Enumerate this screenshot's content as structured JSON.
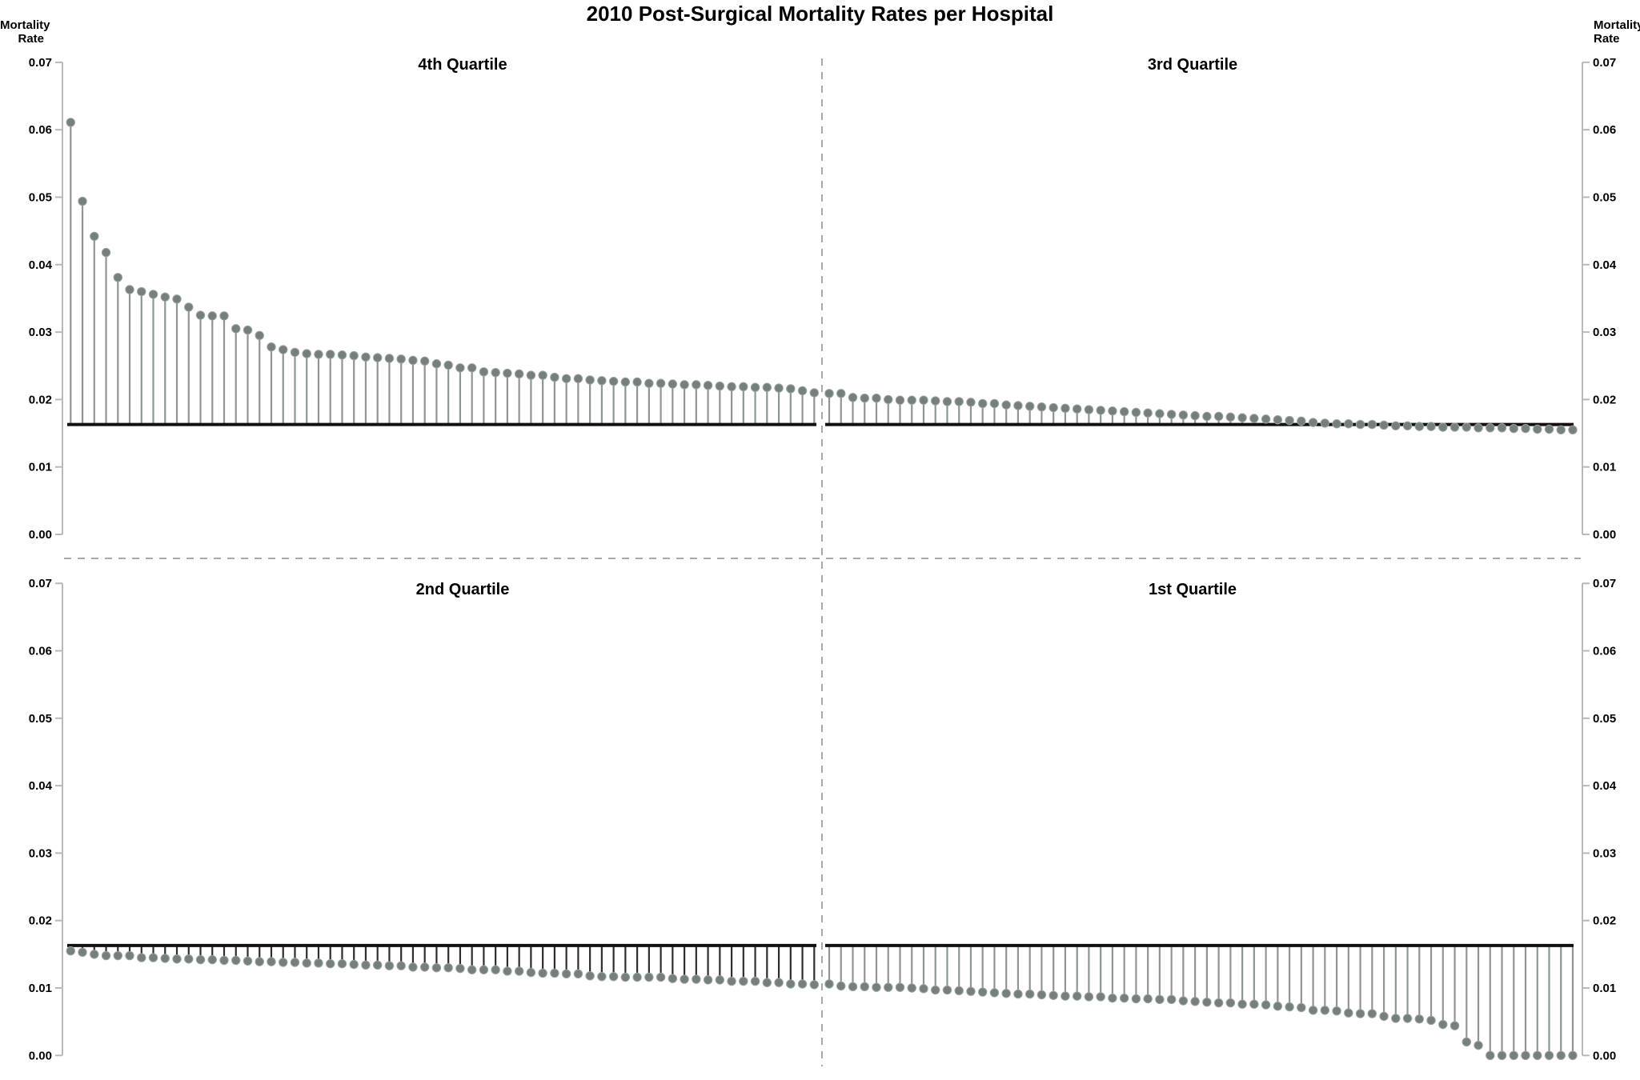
{
  "title": "2010 Post-Surgical Mortality Rates per Hospital",
  "chart_data": {
    "type": "stem",
    "title": "2010 Post-Surgical Mortality Rates per Hospital",
    "ylabel": "Mortality Rate",
    "ylabel_lines": [
      "Mortality",
      "Rate"
    ],
    "ylim": [
      0.0,
      0.07
    ],
    "y_ticks": [
      0.07,
      0.06,
      0.05,
      0.04,
      0.03,
      0.02,
      0.01,
      0.0
    ],
    "y_tick_labels": [
      "0.07",
      "0.06",
      "0.05",
      "0.04",
      "0.03",
      "0.02",
      "0.01",
      "0.00"
    ],
    "baseline_value": 0.0163,
    "grid": false,
    "legend": "none",
    "layout": "2x2 quadrants split by dashed dividers; each quadrant is a stem (needle) plot of per-hospital mortality rate versus the overall mean line at 0.0163; hospitals sorted descending",
    "colors": {
      "dot": "#75807d",
      "dot_edge": "#9aa3a0",
      "stem": "#8e9693",
      "stem_2nd_quartile": "#2d2d2d",
      "baseline": "#111111",
      "axis": "#b9b9b9",
      "dashed_divider": "#a9a9a9",
      "text": "#000000"
    },
    "panels": [
      {
        "label": "4th Quartile",
        "position": "top-left",
        "values": [
          0.0611,
          0.0494,
          0.0442,
          0.0418,
          0.0381,
          0.0363,
          0.036,
          0.0356,
          0.0352,
          0.0349,
          0.0337,
          0.0325,
          0.0324,
          0.0324,
          0.0305,
          0.0303,
          0.0295,
          0.0278,
          0.0274,
          0.027,
          0.0268,
          0.0267,
          0.0267,
          0.0266,
          0.0265,
          0.0263,
          0.0262,
          0.0261,
          0.026,
          0.0258,
          0.0257,
          0.0253,
          0.0251,
          0.0247,
          0.0247,
          0.0241,
          0.024,
          0.0239,
          0.0238,
          0.0236,
          0.0236,
          0.0233,
          0.0231,
          0.0231,
          0.0229,
          0.0228,
          0.0227,
          0.0226,
          0.0226,
          0.0224,
          0.0224,
          0.0223,
          0.0222,
          0.0222,
          0.0221,
          0.022,
          0.0219,
          0.0219,
          0.0218,
          0.0218,
          0.0217,
          0.0216,
          0.0213,
          0.021
        ]
      },
      {
        "label": "3rd Quartile",
        "position": "top-right",
        "values": [
          0.0209,
          0.0209,
          0.0203,
          0.0202,
          0.0202,
          0.02,
          0.0199,
          0.0199,
          0.0199,
          0.0198,
          0.0197,
          0.0197,
          0.0196,
          0.0194,
          0.0194,
          0.0192,
          0.0191,
          0.019,
          0.0189,
          0.0188,
          0.0187,
          0.0186,
          0.0185,
          0.0184,
          0.0183,
          0.0182,
          0.0181,
          0.018,
          0.0179,
          0.0178,
          0.0177,
          0.0176,
          0.0175,
          0.0175,
          0.0174,
          0.0173,
          0.0172,
          0.0171,
          0.017,
          0.0169,
          0.0168,
          0.0166,
          0.0165,
          0.0164,
          0.0164,
          0.0163,
          0.0163,
          0.0162,
          0.0161,
          0.0161,
          0.016,
          0.016,
          0.0159,
          0.0159,
          0.0159,
          0.0158,
          0.0158,
          0.0158,
          0.0157,
          0.0157,
          0.0156,
          0.0156,
          0.0155,
          0.0155
        ]
      },
      {
        "label": "2nd Quartile",
        "position": "bottom-left",
        "values": [
          0.0155,
          0.0153,
          0.015,
          0.0148,
          0.0148,
          0.0148,
          0.0145,
          0.0145,
          0.0144,
          0.0143,
          0.0143,
          0.0142,
          0.0142,
          0.0141,
          0.0141,
          0.014,
          0.0139,
          0.0139,
          0.0138,
          0.0138,
          0.0137,
          0.0137,
          0.0136,
          0.0136,
          0.0135,
          0.0134,
          0.0134,
          0.0133,
          0.0133,
          0.0131,
          0.0131,
          0.013,
          0.013,
          0.0129,
          0.0127,
          0.0127,
          0.0127,
          0.0125,
          0.0125,
          0.0123,
          0.0122,
          0.0122,
          0.0121,
          0.0121,
          0.0118,
          0.0117,
          0.0117,
          0.0116,
          0.0116,
          0.0116,
          0.0116,
          0.0114,
          0.0113,
          0.0113,
          0.0112,
          0.0112,
          0.011,
          0.011,
          0.011,
          0.0108,
          0.0108,
          0.0106,
          0.0106,
          0.0105
        ]
      },
      {
        "label": "1st Quartile",
        "position": "bottom-right",
        "values": [
          0.0106,
          0.0103,
          0.0102,
          0.0102,
          0.0101,
          0.0101,
          0.0101,
          0.01,
          0.0099,
          0.0097,
          0.0097,
          0.0096,
          0.0095,
          0.0094,
          0.0093,
          0.0092,
          0.0091,
          0.0091,
          0.009,
          0.0089,
          0.0088,
          0.0088,
          0.0087,
          0.0087,
          0.0085,
          0.0085,
          0.0084,
          0.0084,
          0.0083,
          0.0083,
          0.0081,
          0.008,
          0.0079,
          0.0078,
          0.0078,
          0.0076,
          0.0076,
          0.0075,
          0.0073,
          0.0072,
          0.0071,
          0.0067,
          0.0067,
          0.0066,
          0.0063,
          0.0062,
          0.0062,
          0.0058,
          0.0055,
          0.0055,
          0.0054,
          0.0052,
          0.0046,
          0.0044,
          0.002,
          0.0015,
          0.0,
          0.0,
          0.0,
          0.0,
          0.0,
          0.0,
          0.0,
          0.0
        ]
      }
    ]
  }
}
